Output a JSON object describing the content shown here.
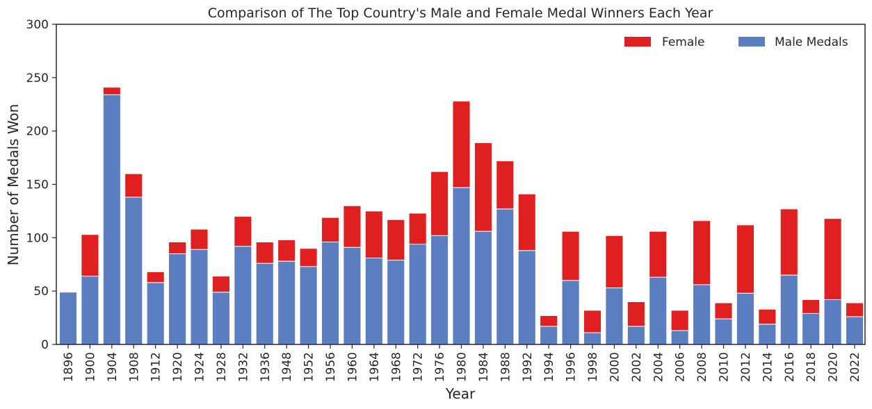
{
  "chart_data": {
    "type": "bar",
    "stacked": true,
    "title": "Comparison of The Top Country's Male and Female Medal Winners Each Year",
    "xlabel": "Year",
    "ylabel": "Number of Medals Won",
    "ylim": [
      0,
      300
    ],
    "yticks": [
      0,
      50,
      100,
      150,
      200,
      250,
      300
    ],
    "grid": false,
    "legend_position": "top-right",
    "categories": [
      "1896",
      "1900",
      "1904",
      "1908",
      "1912",
      "1920",
      "1924",
      "1928",
      "1932",
      "1936",
      "1948",
      "1952",
      "1956",
      "1960",
      "1964",
      "1968",
      "1972",
      "1976",
      "1980",
      "1984",
      "1988",
      "1992",
      "1994",
      "1996",
      "1998",
      "2000",
      "2002",
      "2004",
      "2006",
      "2008",
      "2010",
      "2012",
      "2014",
      "2016",
      "2018",
      "2020",
      "2022"
    ],
    "series": [
      {
        "name": "Male Medals",
        "color": "#5b7ec1",
        "values": [
          49,
          64,
          234,
          138,
          58,
          85,
          89,
          49,
          92,
          76,
          78,
          73,
          96,
          91,
          81,
          79,
          94,
          102,
          147,
          106,
          127,
          88,
          17,
          60,
          11,
          53,
          17,
          63,
          13,
          56,
          24,
          48,
          19,
          65,
          29,
          42,
          26
        ]
      },
      {
        "name": "Female",
        "color": "#e02020",
        "values": [
          0,
          39,
          7,
          22,
          10,
          11,
          19,
          15,
          28,
          20,
          20,
          17,
          23,
          39,
          44,
          38,
          29,
          60,
          81,
          83,
          45,
          53,
          10,
          46,
          21,
          49,
          23,
          43,
          19,
          60,
          15,
          64,
          14,
          62,
          13,
          76,
          13
        ]
      }
    ],
    "legend_order": [
      "Female",
      "Male Medals"
    ]
  }
}
